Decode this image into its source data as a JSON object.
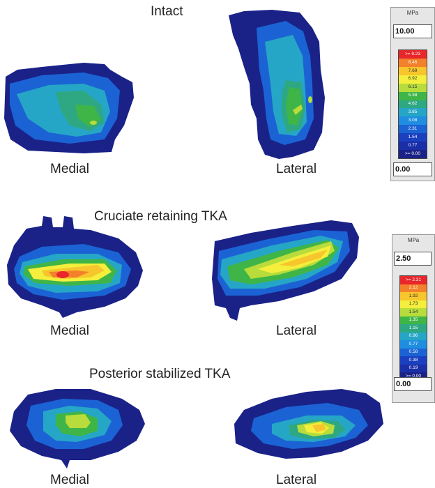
{
  "sections": [
    {
      "title": "Intact",
      "left_label": "Medial",
      "right_label": "Lateral"
    },
    {
      "title": "Cruciate retaining TKA",
      "left_label": "Medial",
      "right_label": "Lateral"
    },
    {
      "title": "Posterior stabilized TKA",
      "left_label": "Medial",
      "right_label": "Lateral"
    }
  ],
  "scale_top": {
    "unit": "MPa",
    "max_value": "10.00",
    "min_value": "0.00",
    "steps": [
      ">= 9.23",
      "8.46",
      "7.69",
      "6.92",
      "6.15",
      "5.38",
      "4.62",
      "3.85",
      "3.08",
      "2.31",
      "1.54",
      "0.77",
      ">= 0.00"
    ]
  },
  "scale_bottom": {
    "unit": "MPa",
    "max_value": "2.50",
    "min_value": "0.00",
    "steps": [
      ">= 2.31",
      "2.12",
      "1.92",
      "1.73",
      "1.54",
      "1.35",
      "1.15",
      "0.96",
      "0.77",
      "0.58",
      "0.38",
      "0.19",
      ">= 0.00"
    ]
  },
  "palette": [
    "#e8262b",
    "#f3802a",
    "#f7c52c",
    "#f4ee3c",
    "#b7dc3c",
    "#3fb548",
    "#2ea882",
    "#26a6c6",
    "#1f8ee0",
    "#1b63d4",
    "#1a3fbf",
    "#1a2fa7",
    "#1a2288"
  ]
}
